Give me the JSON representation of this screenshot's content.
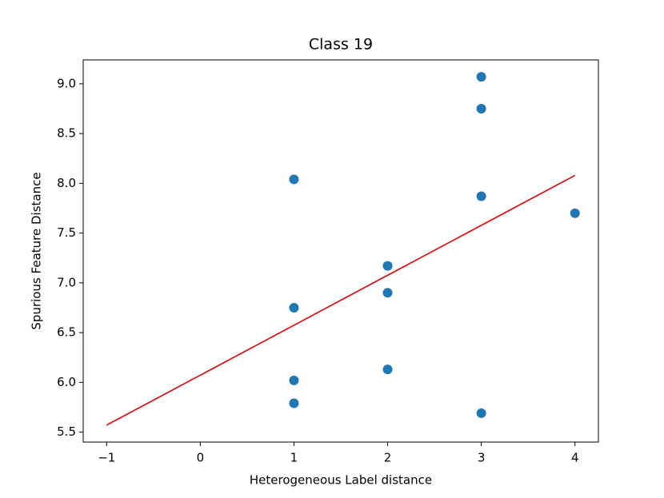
{
  "chart_data": {
    "type": "scatter",
    "title": "Class 19",
    "x_label": "Heterogeneous Label distance",
    "y_label": "Spurious Feature Distance",
    "x": [
      1,
      1,
      1,
      1,
      2,
      2,
      2,
      3,
      3,
      3,
      3,
      4
    ],
    "values": [
      8.04,
      6.75,
      6.02,
      5.79,
      7.17,
      6.9,
      6.13,
      9.07,
      8.75,
      7.87,
      5.69,
      7.7
    ],
    "color": "#1f77b4",
    "fit_line": {
      "x": [
        -1,
        4
      ],
      "values": [
        5.57,
        8.08
      ],
      "color": "#e00000"
    },
    "xlim": [
      -1.25,
      4.25
    ],
    "xticks": [
      {
        "value": -1,
        "label": "−1"
      },
      0,
      1,
      2,
      3,
      4
    ],
    "ylim": [
      5.4,
      9.24
    ],
    "yticks": [
      5.5,
      {
        "value": 6,
        "label": "6.0"
      },
      6.5,
      {
        "value": 7,
        "label": "7.0"
      },
      7.5,
      {
        "value": 8,
        "label": "8.0"
      },
      8.5,
      {
        "value": 9,
        "label": "9.0"
      }
    ]
  }
}
